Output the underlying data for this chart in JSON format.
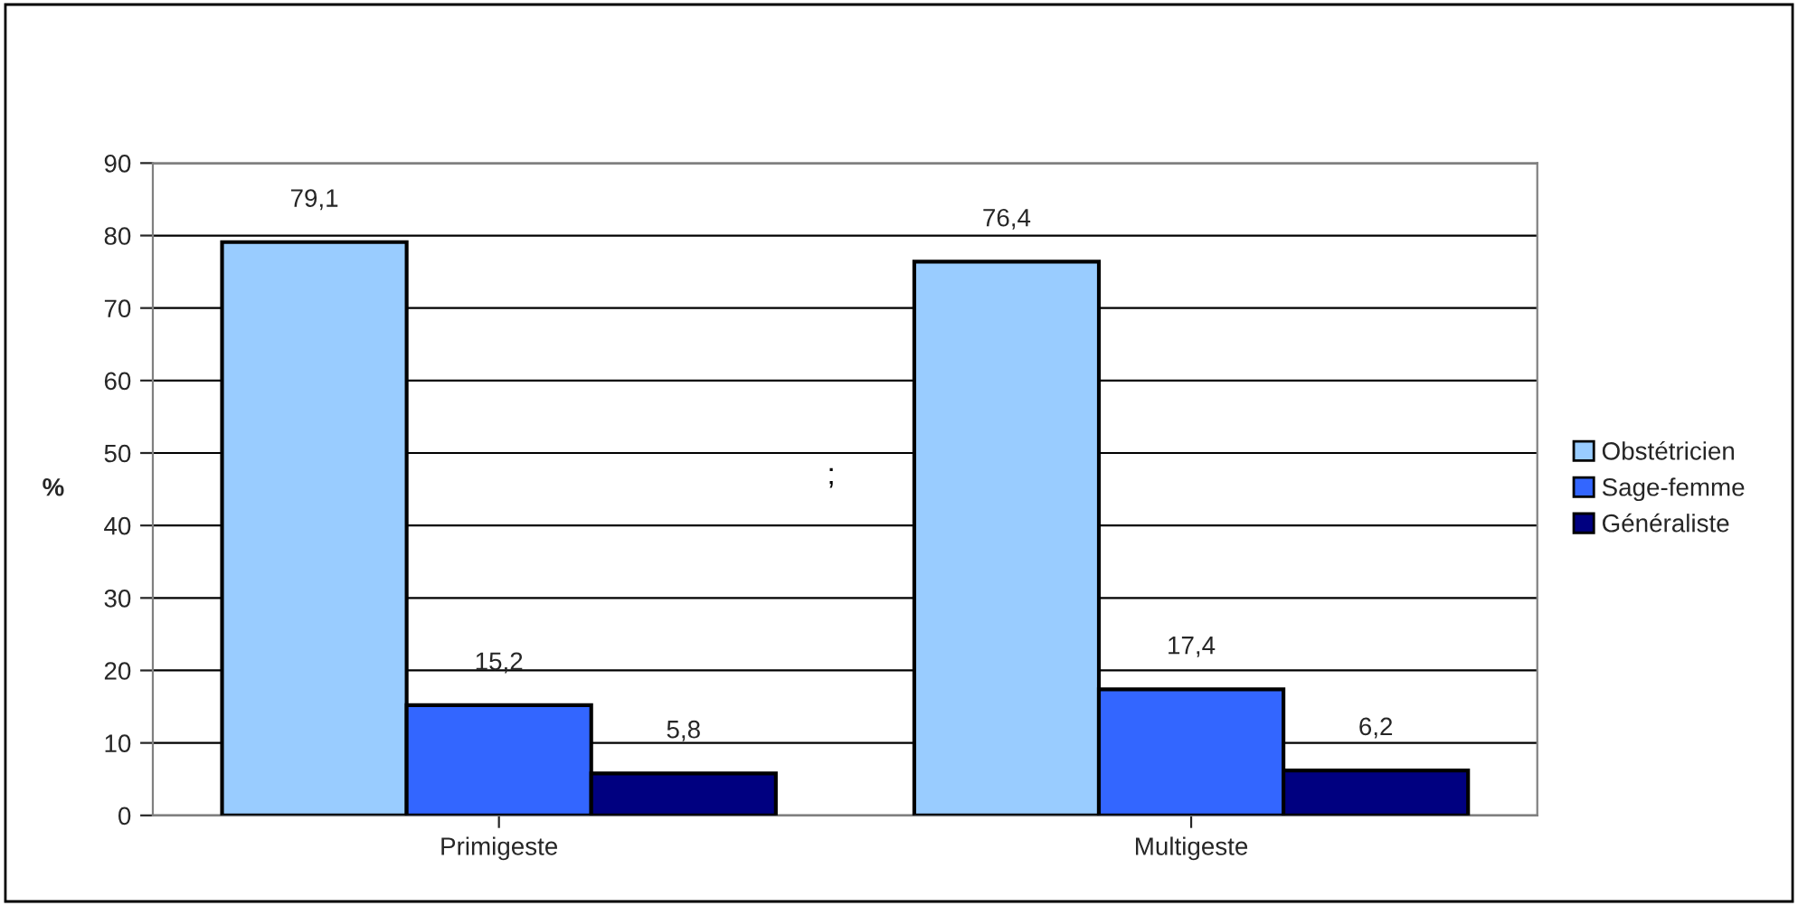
{
  "chart_data": {
    "type": "bar",
    "ylabel": "%",
    "categories": [
      "Primigeste",
      "Multigeste"
    ],
    "series": [
      {
        "name": "Obstétricien",
        "color": "#99ccff",
        "values": [
          79.1,
          76.4
        ],
        "value_labels": [
          "79,1",
          "76,4"
        ]
      },
      {
        "name": "Sage-femme",
        "color": "#3366ff",
        "values": [
          15.2,
          17.4
        ],
        "value_labels": [
          "15,2",
          "17,4"
        ]
      },
      {
        "name": "Généraliste",
        "color": "#000080",
        "values": [
          5.8,
          6.2
        ],
        "value_labels": [
          "5,8",
          "6,2"
        ]
      }
    ],
    "ylim": [
      0,
      90
    ],
    "yticks": [
      0,
      10,
      20,
      30,
      40,
      50,
      60,
      70,
      80,
      90
    ],
    "grid": "y",
    "legend": "right",
    "annotations": [
      ";"
    ]
  }
}
